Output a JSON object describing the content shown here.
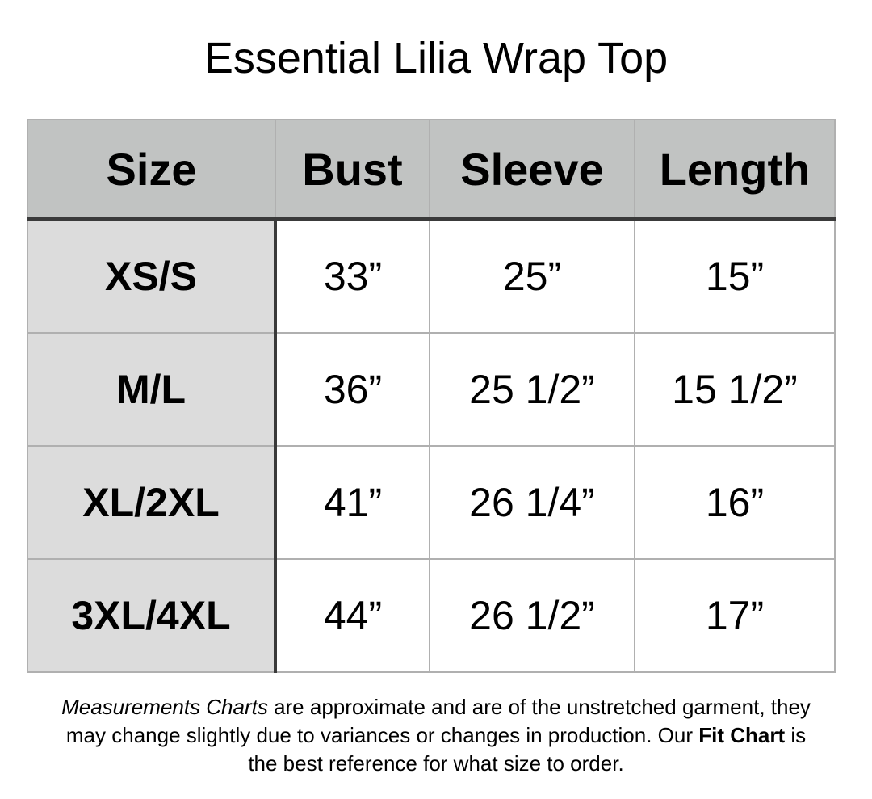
{
  "title": "Essential Lilia Wrap Top",
  "colors": {
    "header_bg": "#c1c3c2",
    "size_column_bg": "#dcdcdc",
    "divider": "#3a3a3a"
  },
  "table": {
    "headers": [
      "Size",
      "Bust",
      "Sleeve",
      "Length"
    ],
    "rows": [
      [
        "XS/S",
        "33”",
        "25”",
        "15”"
      ],
      [
        "M/L",
        "36”",
        "25 1/2”",
        "15 1/2”"
      ],
      [
        "XL/2XL",
        "41”",
        "26 1/4”",
        "16”"
      ],
      [
        "3XL/4XL",
        "44”",
        "26 1/2”",
        "17”"
      ]
    ]
  },
  "note": {
    "italic_lead": "Measurements Charts",
    "part1": " are approximate and are of the unstretched garment, they may change slightly due to variances or changes in production. Our ",
    "bold": "Fit Chart",
    "part2": " is the best reference for what size to order."
  }
}
